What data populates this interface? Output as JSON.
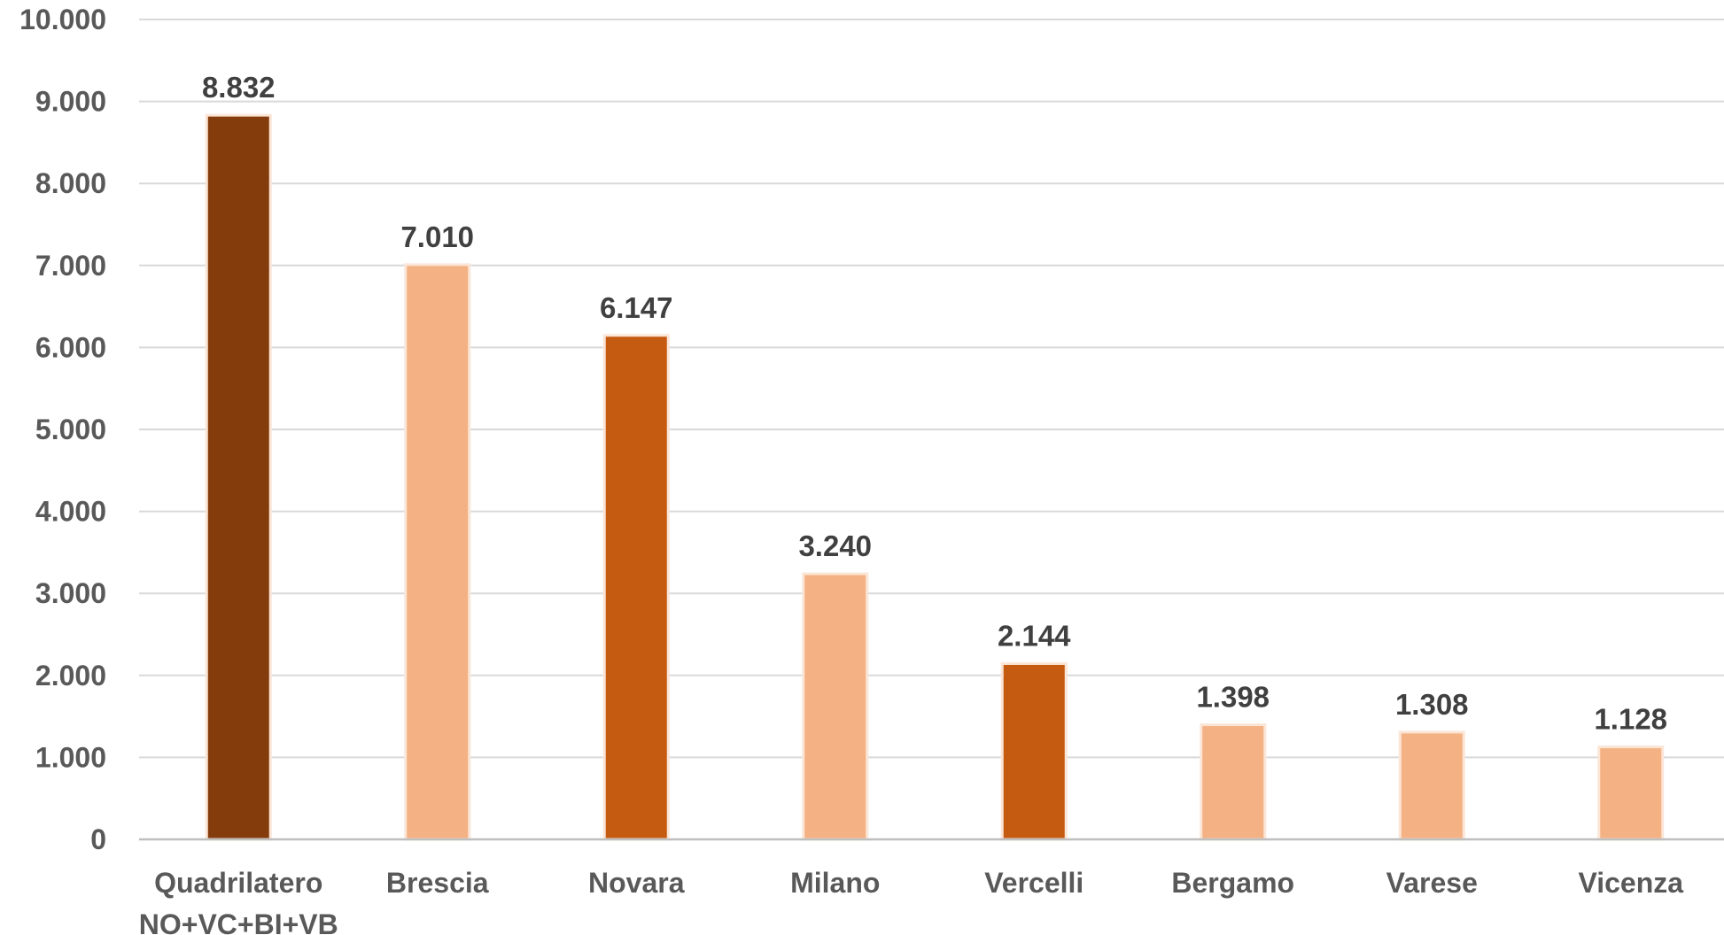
{
  "chart_data": {
    "type": "bar",
    "title": "",
    "xlabel": "",
    "ylabel": "",
    "ylim": [
      0,
      10000
    ],
    "yticks": [
      0,
      1000,
      2000,
      3000,
      4000,
      5000,
      6000,
      7000,
      8000,
      9000,
      10000
    ],
    "ytick_labels": [
      "0",
      "1.000",
      "2.000",
      "3.000",
      "4.000",
      "5.000",
      "6.000",
      "7.000",
      "8.000",
      "9.000",
      "10.000"
    ],
    "grid": true,
    "legend": "none",
    "categories": [
      [
        "Quadrilatero",
        "NO+VC+BI+VB"
      ],
      [
        "Brescia"
      ],
      [
        "Novara"
      ],
      [
        "Milano"
      ],
      [
        "Vercelli"
      ],
      [
        "Bergamo"
      ],
      [
        "Varese"
      ],
      [
        "Vicenza"
      ]
    ],
    "values": [
      8832,
      7010,
      6147,
      3240,
      2144,
      1398,
      1308,
      1128
    ],
    "value_labels": [
      "8.832",
      "7.010",
      "6.147",
      "3.240",
      "2.144",
      "1.398",
      "1.308",
      "1.128"
    ],
    "bar_colors": [
      "#843c0c",
      "#f4b183",
      "#c55a11",
      "#f4b183",
      "#c55a11",
      "#f4b183",
      "#f4b183",
      "#f4b183"
    ]
  }
}
